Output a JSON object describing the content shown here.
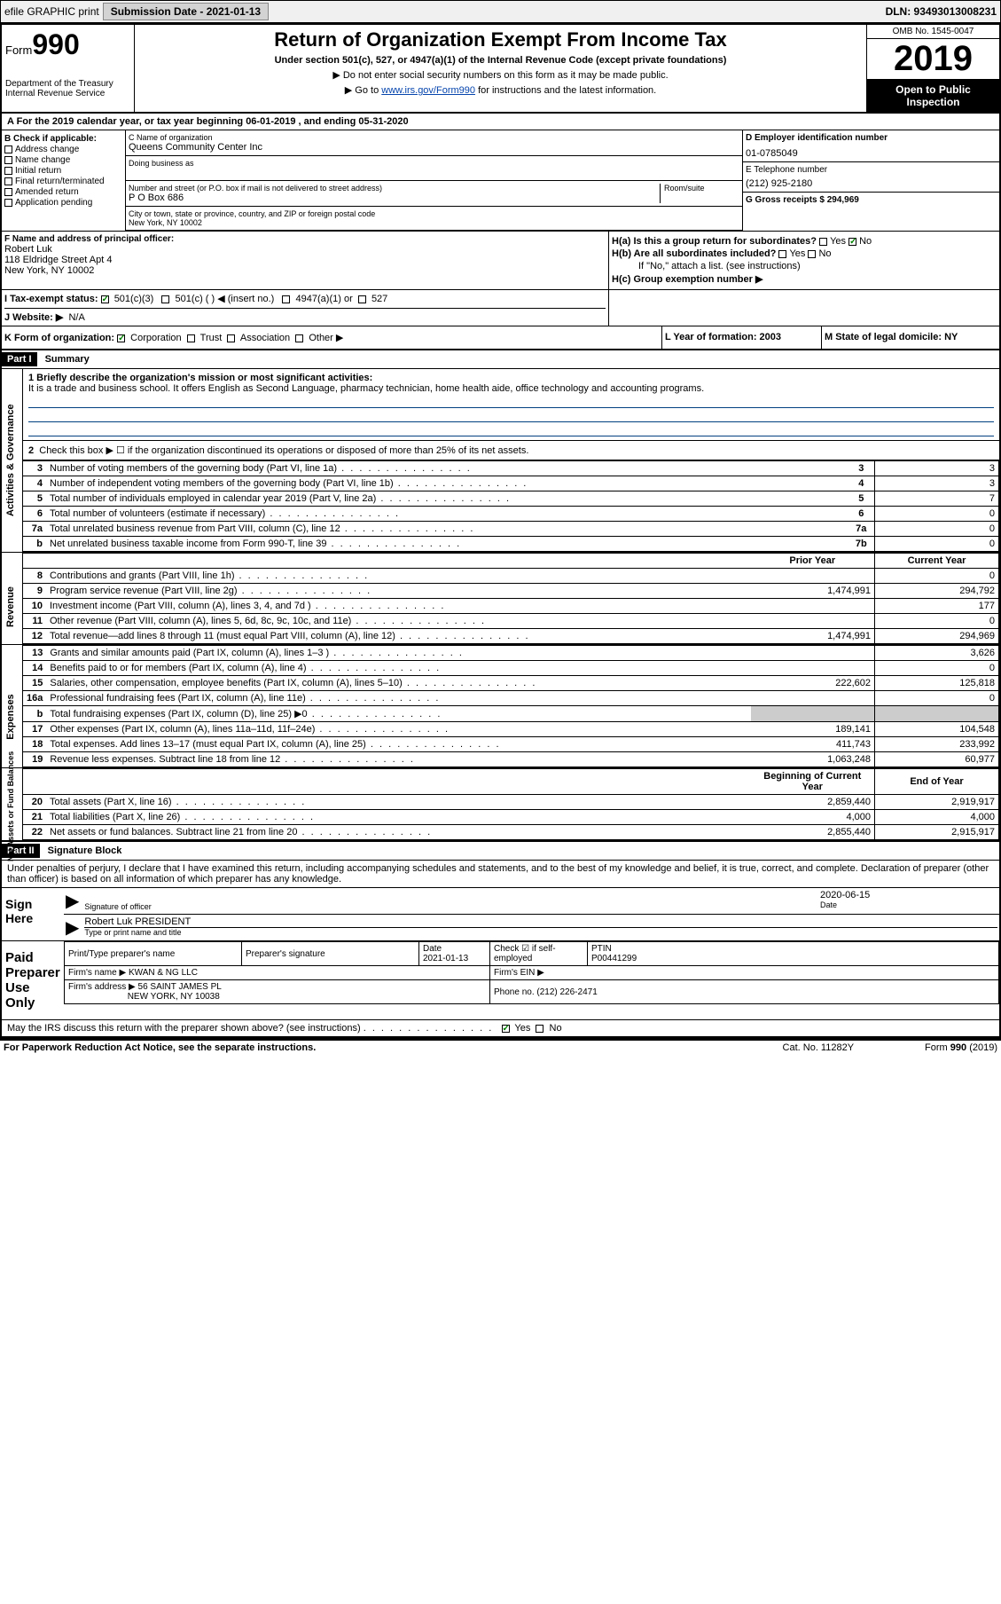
{
  "topbar": {
    "efile": "efile GRAPHIC print",
    "submission_label": "Submission Date - 2021-01-13",
    "dln": "DLN: 93493013008231"
  },
  "header": {
    "form_label": "Form",
    "form_number": "990",
    "dept": "Department of the Treasury\nInternal Revenue Service",
    "title": "Return of Organization Exempt From Income Tax",
    "subtitle": "Under section 501(c), 527, or 4947(a)(1) of the Internal Revenue Code (except private foundations)",
    "note1": "▶ Do not enter social security numbers on this form as it may be made public.",
    "note2_pre": "▶ Go to ",
    "note2_link": "www.irs.gov/Form990",
    "note2_post": " for instructions and the latest information.",
    "omb": "OMB No. 1545-0047",
    "year": "2019",
    "inspection": "Open to Public Inspection"
  },
  "period": "A For the 2019 calendar year, or tax year beginning 06-01-2019   , and ending 05-31-2020",
  "checkboxes": {
    "header": "B Check if applicable:",
    "address_change": "Address change",
    "name_change": "Name change",
    "initial_return": "Initial return",
    "final_return": "Final return/terminated",
    "amended_return": "Amended return",
    "application_pending": "Application pending"
  },
  "org": {
    "name_lbl": "C Name of organization",
    "name": "Queens Community Center Inc",
    "dba_lbl": "Doing business as",
    "street_lbl": "Number and street (or P.O. box if mail is not delivered to street address)",
    "room_lbl": "Room/suite",
    "street": "P O Box 686",
    "city_lbl": "City or town, state or province, country, and ZIP or foreign postal code",
    "city": "New York, NY  10002"
  },
  "ein": {
    "lbl": "D Employer identification number",
    "val": "01-0785049"
  },
  "tel": {
    "lbl": "E Telephone number",
    "val": "(212) 925-2180"
  },
  "gross": {
    "lbl": "G Gross receipts $ 294,969"
  },
  "officer": {
    "lbl": "F  Name and address of principal officer:",
    "name": "Robert Luk",
    "addr1": "118 Eldridge Street Apt 4",
    "addr2": "New York, NY  10002"
  },
  "h": {
    "ha": "H(a)  Is this a group return for subordinates?",
    "hb": "H(b)  Are all subordinates included?",
    "hb_note": "If \"No,\" attach a list. (see instructions)",
    "hc": "H(c)  Group exemption number ▶",
    "yes": "Yes",
    "no": "No"
  },
  "tax_status": {
    "lbl": "I  Tax-exempt status:",
    "c3": "501(c)(3)",
    "c": "501(c) (  ) ◀ (insert no.)",
    "a1": "4947(a)(1) or",
    "s527": "527"
  },
  "website": {
    "lbl": "J  Website: ▶",
    "val": "N/A"
  },
  "korg": {
    "lbl": "K Form of organization:",
    "corp": "Corporation",
    "trust": "Trust",
    "assoc": "Association",
    "other": "Other ▶",
    "year_lbl": "L Year of formation: 2003",
    "state_lbl": "M State of legal domicile: NY"
  },
  "part1": {
    "hdr": "Part I",
    "title": "Summary",
    "side_gov": "Activities & Governance",
    "side_rev": "Revenue",
    "side_exp": "Expenses",
    "side_net": "Net Assets or Fund Balances",
    "mission_lbl": "1  Briefly describe the organization's mission or most significant activities:",
    "mission": "It is a trade and business school. It offers English as Second Language, pharmacy technician, home health aide, office technology and accounting programs.",
    "line2": "Check this box ▶ ☐  if the organization discontinued its operations or disposed of more than 25% of its net assets.",
    "rows_gov": [
      {
        "n": "3",
        "d": "Number of voting members of the governing body (Part VI, line 1a)",
        "b": "3",
        "v": "3"
      },
      {
        "n": "4",
        "d": "Number of independent voting members of the governing body (Part VI, line 1b)",
        "b": "4",
        "v": "3"
      },
      {
        "n": "5",
        "d": "Total number of individuals employed in calendar year 2019 (Part V, line 2a)",
        "b": "5",
        "v": "7"
      },
      {
        "n": "6",
        "d": "Total number of volunteers (estimate if necessary)",
        "b": "6",
        "v": "0"
      },
      {
        "n": "7a",
        "d": "Total unrelated business revenue from Part VIII, column (C), line 12",
        "b": "7a",
        "v": "0"
      },
      {
        "n": "b",
        "d": "Net unrelated business taxable income from Form 990-T, line 39",
        "b": "7b",
        "v": "0"
      }
    ],
    "colhdr_prior": "Prior Year",
    "colhdr_current": "Current Year",
    "rows_rev": [
      {
        "n": "8",
        "d": "Contributions and grants (Part VIII, line 1h)",
        "p": "",
        "c": "0"
      },
      {
        "n": "9",
        "d": "Program service revenue (Part VIII, line 2g)",
        "p": "1,474,991",
        "c": "294,792"
      },
      {
        "n": "10",
        "d": "Investment income (Part VIII, column (A), lines 3, 4, and 7d )",
        "p": "",
        "c": "177"
      },
      {
        "n": "11",
        "d": "Other revenue (Part VIII, column (A), lines 5, 6d, 8c, 9c, 10c, and 11e)",
        "p": "",
        "c": "0"
      },
      {
        "n": "12",
        "d": "Total revenue—add lines 8 through 11 (must equal Part VIII, column (A), line 12)",
        "p": "1,474,991",
        "c": "294,969"
      }
    ],
    "rows_exp": [
      {
        "n": "13",
        "d": "Grants and similar amounts paid (Part IX, column (A), lines 1–3 )",
        "p": "",
        "c": "3,626"
      },
      {
        "n": "14",
        "d": "Benefits paid to or for members (Part IX, column (A), line 4)",
        "p": "",
        "c": "0"
      },
      {
        "n": "15",
        "d": "Salaries, other compensation, employee benefits (Part IX, column (A), lines 5–10)",
        "p": "222,602",
        "c": "125,818"
      },
      {
        "n": "16a",
        "d": "Professional fundraising fees (Part IX, column (A), line 11e)",
        "p": "",
        "c": "0"
      },
      {
        "n": "b",
        "d": "Total fundraising expenses (Part IX, column (D), line 25) ▶0",
        "p": "shade",
        "c": "shade"
      },
      {
        "n": "17",
        "d": "Other expenses (Part IX, column (A), lines 11a–11d, 11f–24e)",
        "p": "189,141",
        "c": "104,548"
      },
      {
        "n": "18",
        "d": "Total expenses. Add lines 13–17 (must equal Part IX, column (A), line 25)",
        "p": "411,743",
        "c": "233,992"
      },
      {
        "n": "19",
        "d": "Revenue less expenses. Subtract line 18 from line 12",
        "p": "1,063,248",
        "c": "60,977"
      }
    ],
    "colhdr_begin": "Beginning of Current Year",
    "colhdr_end": "End of Year",
    "rows_net": [
      {
        "n": "20",
        "d": "Total assets (Part X, line 16)",
        "p": "2,859,440",
        "c": "2,919,917"
      },
      {
        "n": "21",
        "d": "Total liabilities (Part X, line 26)",
        "p": "4,000",
        "c": "4,000"
      },
      {
        "n": "22",
        "d": "Net assets or fund balances. Subtract line 21 from line 20",
        "p": "2,855,440",
        "c": "2,915,917"
      }
    ]
  },
  "part2": {
    "hdr": "Part II",
    "title": "Signature Block",
    "penalty": "Under penalties of perjury, I declare that I have examined this return, including accompanying schedules and statements, and to the best of my knowledge and belief, it is true, correct, and complete. Declaration of preparer (other than officer) is based on all information of which preparer has any knowledge.",
    "sign_here": "Sign Here",
    "sig_officer": "Signature of officer",
    "sig_date": "2020-06-15",
    "date_lbl": "Date",
    "officer_name": "Robert Luk PRESIDENT",
    "type_name": "Type or print name and title",
    "paid": "Paid Preparer Use Only",
    "prep_name_lbl": "Print/Type preparer's name",
    "prep_sig_lbl": "Preparer's signature",
    "prep_date_lbl": "Date",
    "prep_date": "2021-01-13",
    "self_emp": "Check ☑ if self-employed",
    "ptin_lbl": "PTIN",
    "ptin": "P00441299",
    "firm_name_lbl": "Firm's name    ▶",
    "firm_name": "KWAN & NG LLC",
    "firm_ein_lbl": "Firm's EIN ▶",
    "firm_addr_lbl": "Firm's address ▶",
    "firm_addr1": "56 SAINT JAMES PL",
    "firm_addr2": "NEW YORK, NY  10038",
    "phone_lbl": "Phone no. (212) 226-2471",
    "discuss": "May the IRS discuss this return with the preparer shown above? (see instructions)",
    "yes": "Yes",
    "no": "No"
  },
  "footer": {
    "paperwork": "For Paperwork Reduction Act Notice, see the separate instructions.",
    "cat": "Cat. No. 11282Y",
    "form": "Form 990 (2019)"
  }
}
